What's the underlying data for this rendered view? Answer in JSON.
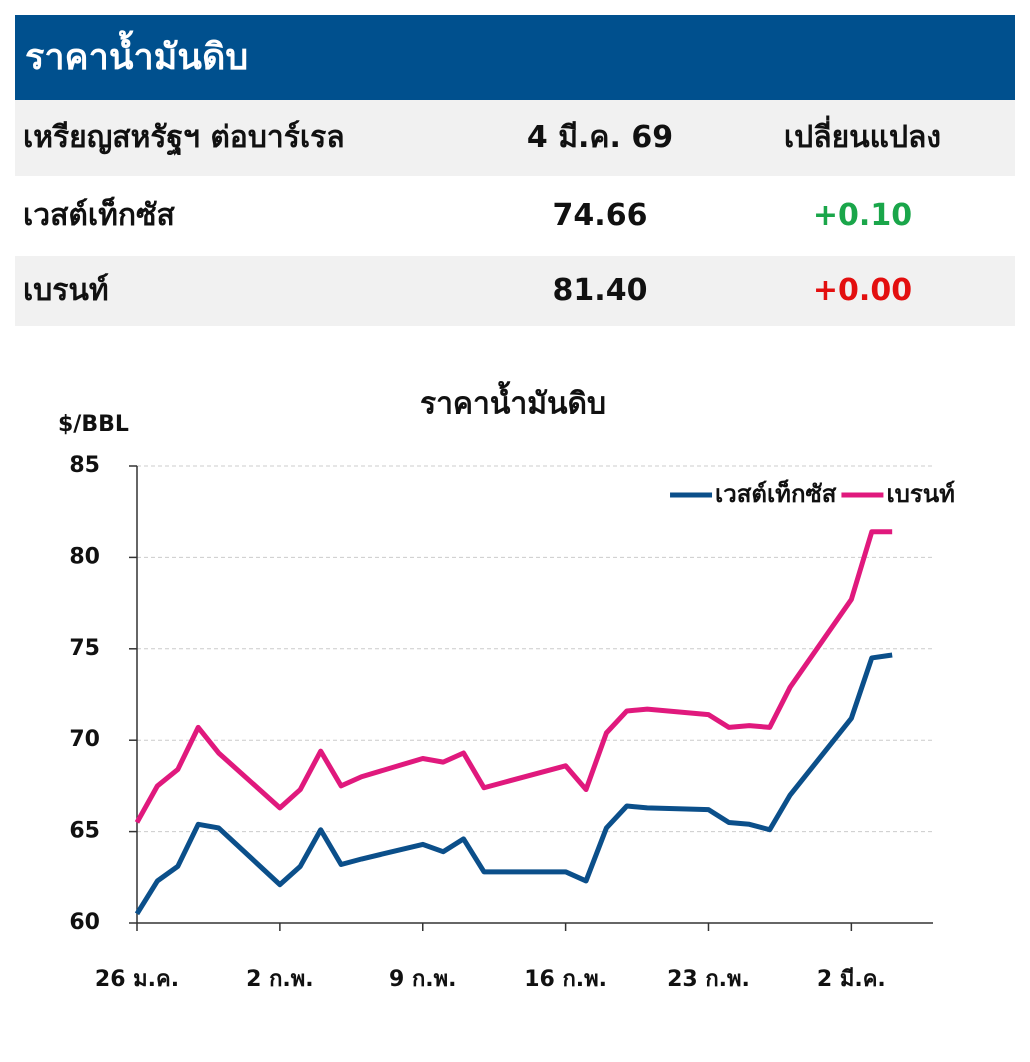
{
  "header": {
    "title": "ราคาน้ำมันดิบ"
  },
  "table": {
    "columns": [
      "เหรียญสหรัฐฯ ต่อบาร์เรล",
      "4 มี.ค. 69",
      "เปลี่ยนแปลง"
    ],
    "rows": [
      [
        "เวสต์เท็กซัส",
        "74.66",
        "+0.10"
      ],
      [
        "เบรนท์",
        "81.40",
        "+0.00"
      ]
    ]
  },
  "chart_data": {
    "type": "line",
    "title": "ราคาน้ำมันดิบ",
    "y_label": "$/BBL",
    "x": [
      0,
      1,
      2,
      3,
      4,
      7,
      8,
      9,
      10,
      11,
      14,
      15,
      16,
      17,
      18,
      21,
      22,
      23,
      24,
      25,
      28,
      29,
      30,
      31,
      32,
      35,
      36,
      37
    ],
    "xlim": [
      0,
      39
    ],
    "xticks": [
      {
        "value": 0,
        "label": "26 ม.ค."
      },
      {
        "value": 7,
        "label": "2 ก.พ."
      },
      {
        "value": 14,
        "label": "9 ก.พ."
      },
      {
        "value": 21,
        "label": "16 ก.พ."
      },
      {
        "value": 28,
        "label": "23 ก.พ."
      },
      {
        "value": 35,
        "label": "2 มี.ค."
      }
    ],
    "ylim": [
      60,
      85
    ],
    "yticks": [
      60,
      65,
      70,
      75,
      80,
      85
    ],
    "grid": true,
    "legend": "upper right",
    "series": [
      {
        "name": "เวสต์เท็กซัส",
        "color": "#0b4f8a",
        "values": [
          60.5,
          62.3,
          63.1,
          65.4,
          65.2,
          62.1,
          63.1,
          65.1,
          63.2,
          63.5,
          64.3,
          63.9,
          64.6,
          62.8,
          62.8,
          62.8,
          62.3,
          65.2,
          66.4,
          66.3,
          66.2,
          65.5,
          65.4,
          65.1,
          67.0,
          71.2,
          74.5,
          74.66
        ]
      },
      {
        "name": "เบรนท์",
        "color": "#e0197d",
        "values": [
          65.5,
          67.5,
          68.4,
          70.7,
          69.3,
          66.3,
          67.3,
          69.4,
          67.5,
          68.0,
          69.0,
          68.8,
          69.3,
          67.4,
          67.7,
          68.6,
          67.3,
          70.4,
          71.6,
          71.7,
          71.4,
          70.7,
          70.8,
          70.7,
          72.9,
          77.7,
          81.4,
          81.4
        ]
      }
    ]
  }
}
